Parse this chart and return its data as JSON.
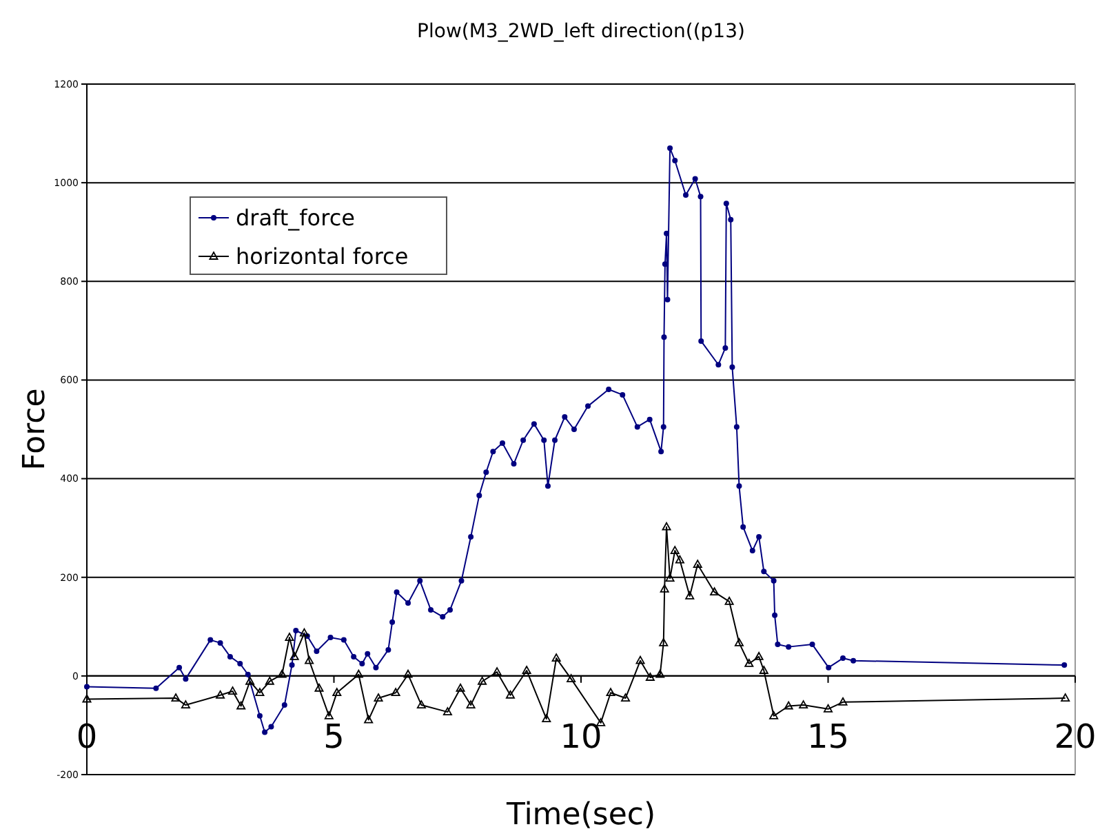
{
  "chart_data": {
    "type": "line",
    "title": "Plow(M3_2WD_left direction((p13)",
    "xlabel": "Time(sec)",
    "ylabel": "Force",
    "xlim": [
      0,
      20
    ],
    "xticks": [
      0,
      5,
      10,
      15,
      20
    ],
    "ylim": [
      -200,
      1200
    ],
    "yticks": [
      -200,
      0,
      200,
      400,
      600,
      800,
      1000,
      1200
    ],
    "grid": "y",
    "legend": "top left",
    "line_style": "solid",
    "series": [
      {
        "name": "draft_force",
        "color": "#000080",
        "marker": "circle",
        "x": [
          0,
          1.4,
          1.87,
          2.0,
          2.5,
          2.7,
          2.9,
          3.1,
          3.26,
          3.5,
          3.6,
          3.73,
          4.0,
          4.15,
          4.23,
          4.46,
          4.65,
          4.93,
          5.2,
          5.4,
          5.57,
          5.68,
          5.85,
          6.1,
          6.18,
          6.27,
          6.5,
          6.74,
          6.96,
          7.2,
          7.35,
          7.58,
          7.77,
          7.94,
          8.08,
          8.22,
          8.41,
          8.64,
          8.83,
          9.05,
          9.25,
          9.33,
          9.47,
          9.67,
          9.86,
          10.14,
          10.56,
          10.84,
          11.14,
          11.39,
          11.62,
          11.67,
          11.68,
          11.7,
          11.73,
          11.75,
          11.8,
          11.9,
          12.12,
          12.31,
          12.42,
          12.43,
          12.78,
          12.92,
          12.94,
          13.03,
          13.06,
          13.15,
          13.2,
          13.28,
          13.47,
          13.6,
          13.7,
          13.9,
          13.92,
          13.98,
          14.2,
          14.68,
          15.01,
          15.3,
          15.51,
          19.78
        ],
        "values": [
          -22,
          -25,
          17,
          -6,
          73,
          67,
          39,
          25,
          3,
          -81,
          -114,
          -103,
          -59,
          22,
          92,
          81,
          50,
          78,
          73,
          39,
          25,
          45,
          17,
          53,
          109,
          170,
          148,
          193,
          134,
          120,
          134,
          193,
          282,
          366,
          413,
          455,
          472,
          430,
          478,
          511,
          478,
          385,
          478,
          525,
          500,
          547,
          581,
          570,
          505,
          520,
          455,
          505,
          687,
          835,
          897,
          763,
          1070,
          1045,
          975,
          1008,
          972,
          679,
          631,
          665,
          958,
          925,
          626,
          505,
          385,
          302,
          254,
          282,
          212,
          193,
          123,
          64,
          59,
          64,
          17,
          36,
          31,
          22
        ]
      },
      {
        "name": "horizontal force",
        "color": "#000000",
        "marker": "triangle",
        "x": [
          0,
          1.8,
          2.0,
          2.7,
          2.95,
          3.12,
          3.3,
          3.5,
          3.7,
          3.95,
          4.1,
          4.2,
          4.4,
          4.5,
          4.7,
          4.9,
          5.06,
          5.5,
          5.7,
          5.9,
          6.25,
          6.5,
          6.77,
          7.3,
          7.56,
          7.77,
          8.0,
          8.3,
          8.57,
          8.9,
          9.3,
          9.5,
          9.8,
          10.4,
          10.6,
          10.9,
          11.2,
          11.4,
          11.6,
          11.67,
          11.69,
          11.73,
          11.8,
          11.9,
          12.0,
          12.2,
          12.36,
          12.7,
          13.0,
          13.2,
          13.4,
          13.6,
          13.7,
          13.9,
          14.2,
          14.5,
          15.0,
          15.3,
          19.8
        ],
        "values": [
          -47,
          -45,
          -59,
          -39,
          -31,
          -61,
          -11,
          -34,
          -11,
          3,
          78,
          39,
          87,
          31,
          -25,
          -81,
          -34,
          3,
          -89,
          -45,
          -34,
          3,
          -59,
          -73,
          -25,
          -59,
          -11,
          8,
          -39,
          11,
          -87,
          36,
          -6,
          -95,
          -34,
          -45,
          31,
          -3,
          3,
          67,
          176,
          302,
          198,
          254,
          235,
          162,
          226,
          170,
          151,
          67,
          25,
          39,
          11,
          -81,
          -61,
          -59,
          -67,
          -53,
          -45
        ]
      }
    ]
  }
}
